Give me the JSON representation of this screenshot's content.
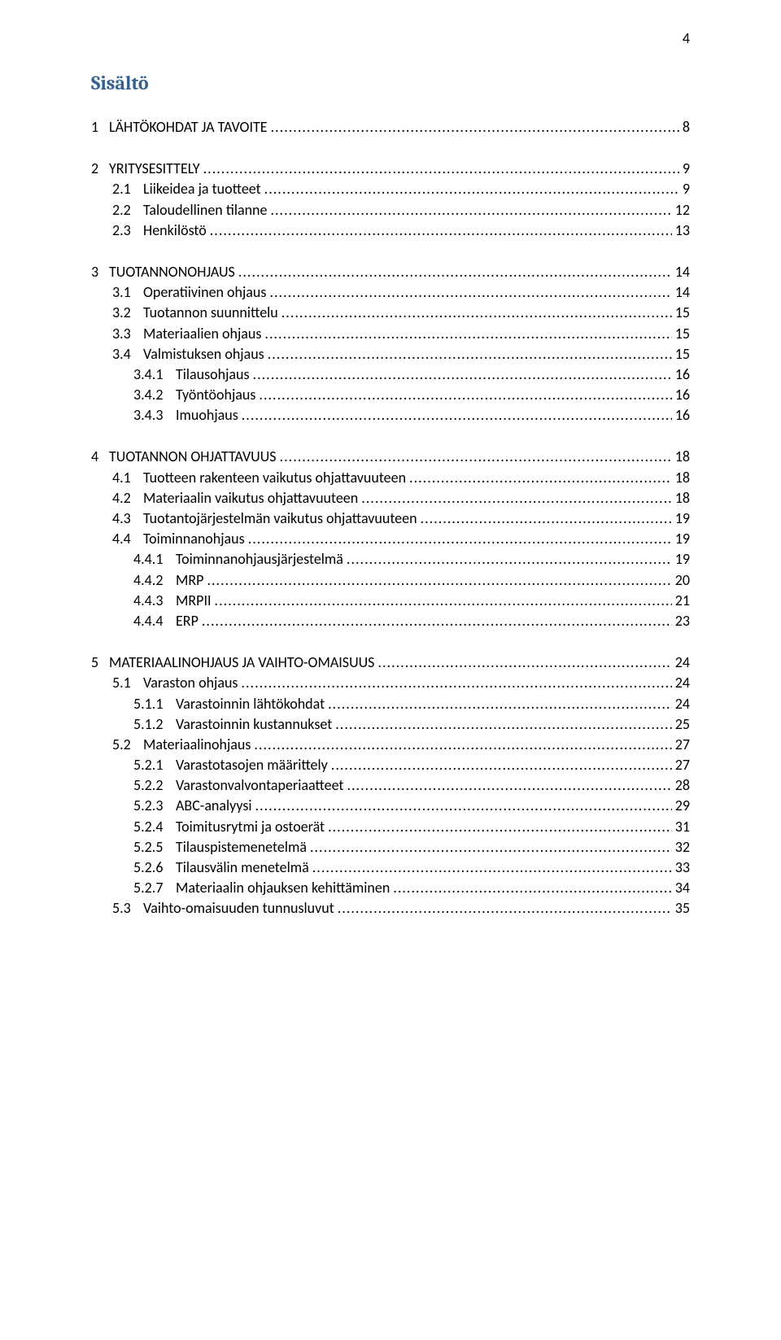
{
  "page_number": "4",
  "heading": "Sisältö",
  "colors": {
    "heading": "#365f91",
    "text": "#000000",
    "background": "#ffffff"
  },
  "fonts": {
    "heading_family": "Cambria",
    "body_family": "Calibri",
    "heading_size_pt": 18,
    "body_size_pt": 13
  },
  "toc_groups": [
    {
      "entries": [
        {
          "level": 1,
          "num": "1",
          "title": "LÄHTÖKOHDAT JA TAVOITE",
          "page": "8"
        }
      ]
    },
    {
      "entries": [
        {
          "level": 1,
          "num": "2",
          "title": "YRITYSESITTELY",
          "page": "9"
        },
        {
          "level": 2,
          "num": "2.1",
          "title": "Liikeidea ja tuotteet",
          "page": "9"
        },
        {
          "level": 2,
          "num": "2.2",
          "title": "Taloudellinen tilanne",
          "page": "12"
        },
        {
          "level": 2,
          "num": "2.3",
          "title": "Henkilöstö",
          "page": "13"
        }
      ]
    },
    {
      "entries": [
        {
          "level": 1,
          "num": "3",
          "title": "TUOTANNONOHJAUS",
          "page": "14"
        },
        {
          "level": 2,
          "num": "3.1",
          "title": "Operatiivinen ohjaus",
          "page": "14"
        },
        {
          "level": 2,
          "num": "3.2",
          "title": "Tuotannon suunnittelu",
          "page": "15"
        },
        {
          "level": 2,
          "num": "3.3",
          "title": "Materiaalien ohjaus",
          "page": "15"
        },
        {
          "level": 2,
          "num": "3.4",
          "title": "Valmistuksen ohjaus",
          "page": "15"
        },
        {
          "level": 3,
          "num": "3.4.1",
          "title": "Tilausohjaus",
          "page": "16"
        },
        {
          "level": 3,
          "num": "3.4.2",
          "title": "Työntöohjaus",
          "page": "16"
        },
        {
          "level": 3,
          "num": "3.4.3",
          "title": "Imuohjaus",
          "page": "16"
        }
      ]
    },
    {
      "entries": [
        {
          "level": 1,
          "num": "4",
          "title": "TUOTANNON OHJATTAVUUS",
          "page": "18"
        },
        {
          "level": 2,
          "num": "4.1",
          "title": "Tuotteen rakenteen vaikutus ohjattavuuteen",
          "page": "18"
        },
        {
          "level": 2,
          "num": "4.2",
          "title": "Materiaalin vaikutus ohjattavuuteen",
          "page": "18"
        },
        {
          "level": 2,
          "num": "4.3",
          "title": "Tuotantojärjestelmän vaikutus ohjattavuuteen",
          "page": "19"
        },
        {
          "level": 2,
          "num": "4.4",
          "title": "Toiminnanohjaus",
          "page": "19"
        },
        {
          "level": 3,
          "num": "4.4.1",
          "title": "Toiminnanohjausjärjestelmä",
          "page": "19"
        },
        {
          "level": 3,
          "num": "4.4.2",
          "title": "MRP",
          "page": "20"
        },
        {
          "level": 3,
          "num": "4.4.3",
          "title": "MRPII",
          "page": "21"
        },
        {
          "level": 3,
          "num": "4.4.4",
          "title": "ERP",
          "page": "23"
        }
      ]
    },
    {
      "entries": [
        {
          "level": 1,
          "num": "5",
          "title": "MATERIAALINOHJAUS JA VAIHTO-OMAISUUS",
          "page": "24"
        },
        {
          "level": 2,
          "num": "5.1",
          "title": "Varaston ohjaus",
          "page": "24"
        },
        {
          "level": 3,
          "num": "5.1.1",
          "title": "Varastoinnin lähtökohdat",
          "page": "24"
        },
        {
          "level": 3,
          "num": "5.1.2",
          "title": "Varastoinnin kustannukset",
          "page": "25"
        },
        {
          "level": 2,
          "num": "5.2",
          "title": "Materiaalinohjaus",
          "page": "27"
        },
        {
          "level": 3,
          "num": "5.2.1",
          "title": "Varastotasojen määrittely",
          "page": "27"
        },
        {
          "level": 3,
          "num": "5.2.2",
          "title": "Varastonvalvontaperiaatteet",
          "page": "28"
        },
        {
          "level": 3,
          "num": "5.2.3",
          "title": "ABC-analyysi",
          "page": "29"
        },
        {
          "level": 3,
          "num": "5.2.4",
          "title": "Toimitusrytmi ja ostoerät",
          "page": "31"
        },
        {
          "level": 3,
          "num": "5.2.5",
          "title": "Tilauspistemenetelmä",
          "page": "32"
        },
        {
          "level": 3,
          "num": "5.2.6",
          "title": "Tilausvälin menetelmä",
          "page": "33"
        },
        {
          "level": 3,
          "num": "5.2.7",
          "title": "Materiaalin ohjauksen kehittäminen",
          "page": "34"
        },
        {
          "level": 2,
          "num": "5.3",
          "title": "Vaihto-omaisuuden tunnusluvut",
          "page": "35"
        }
      ]
    }
  ]
}
